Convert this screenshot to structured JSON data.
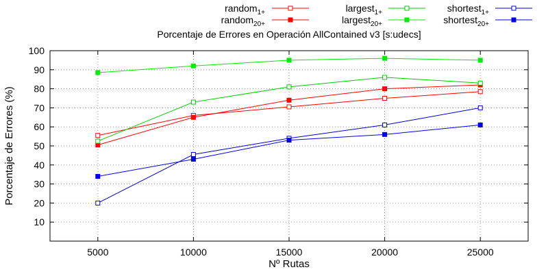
{
  "chart_data": {
    "type": "line",
    "title": "Porcentaje de Errores en Operación AllContained v3 [s:udecs]",
    "xlabel": "Nº Rutas",
    "ylabel": "Porcentaje de Errores (%)",
    "x": [
      5000,
      10000,
      15000,
      20000,
      25000
    ],
    "xlim": [
      2500,
      27500
    ],
    "ylim": [
      0,
      100
    ],
    "xticks": [
      "5000",
      "10000",
      "15000",
      "20000",
      "25000"
    ],
    "yticks": [
      "10",
      "20",
      "30",
      "40",
      "50",
      "60",
      "70",
      "80",
      "90",
      "100"
    ],
    "grid": true,
    "legend_position": "top-right, above plot",
    "series": [
      {
        "name": "random",
        "sub": "1+",
        "color": "#ff0000",
        "marker": "open-square",
        "values": [
          55.5,
          66,
          70.5,
          75,
          78.5
        ]
      },
      {
        "name": "random",
        "sub": "20+",
        "color": "#ff0000",
        "marker": "filled-square",
        "values": [
          50.5,
          65,
          74,
          80,
          82
        ]
      },
      {
        "name": "largest",
        "sub": "1+",
        "color": "#00cc00",
        "marker": "open-square",
        "values": [
          52.5,
          73,
          81,
          86,
          83
        ]
      },
      {
        "name": "largest",
        "sub": "20+",
        "color": "#00ee00",
        "marker": "filled-square",
        "values": [
          88.5,
          92,
          95,
          96,
          95
        ]
      },
      {
        "name": "shortest",
        "sub": "1+",
        "color": "#0000cc",
        "marker": "open-square",
        "values": [
          20,
          45.5,
          54,
          61,
          70
        ]
      },
      {
        "name": "shortest",
        "sub": "20+",
        "color": "#0000ee",
        "marker": "filled-square",
        "values": [
          34,
          43,
          53,
          56,
          61
        ]
      }
    ]
  }
}
